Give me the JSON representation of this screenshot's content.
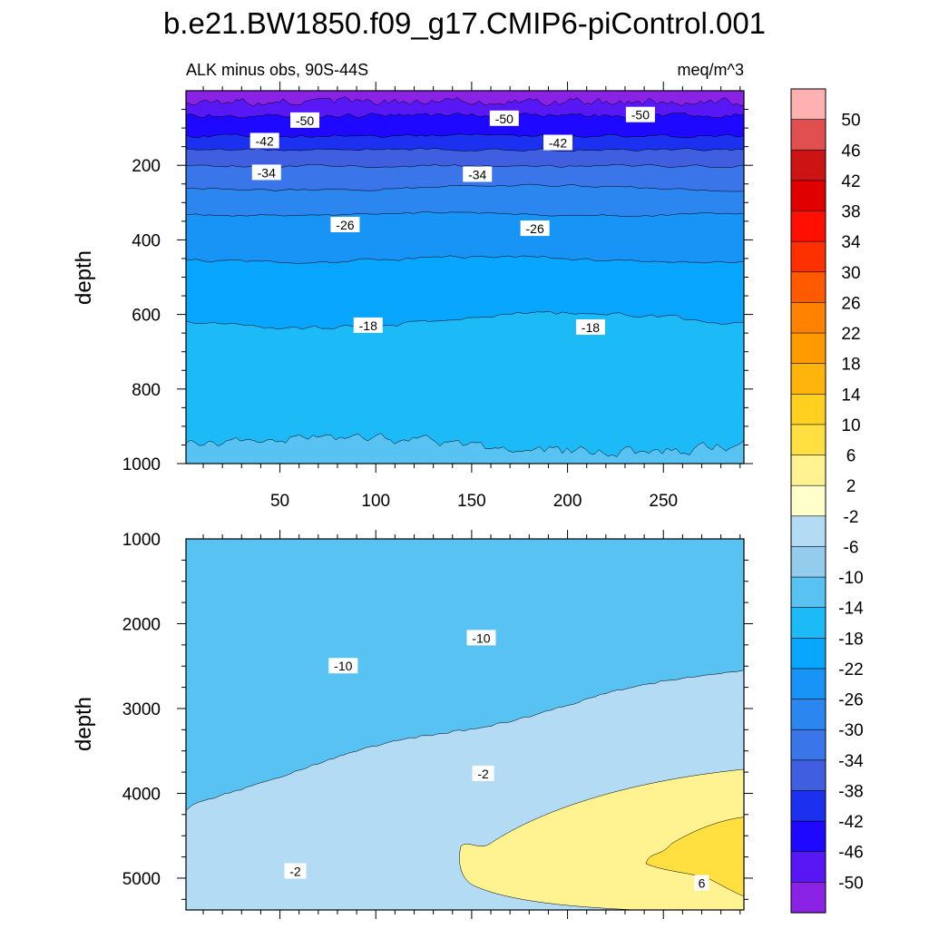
{
  "figure": {
    "title": "b.e21.BW1850.f09_g17.CMIP6-piControl.001",
    "colors": {
      "c_minus54": "#8a22e6",
      "c_minus50": "#5818f5",
      "c_minus46": "#1e08ff",
      "c_minus42": "#1c30f0",
      "c_minus38": "#3f5fe0",
      "c_minus34": "#3a76ea",
      "c_minus30": "#2c86f0",
      "c_minus26": "#1894f7",
      "c_minus22": "#08a6ff",
      "c_minus18": "#1cbaf7",
      "c_minus14": "#58c2f3",
      "c_minus10": "#93ccec",
      "c_minus6": "#b3dcf4",
      "c_minus2": "#ffffcc",
      "c_2": "#fff291",
      "c_6": "#ffe040",
      "c_10": "#ffd020",
      "c_14": "#ffb40b",
      "c_18": "#ff9a00",
      "c_22": "#ff8300",
      "c_26": "#ff5a00",
      "c_30": "#ff3000",
      "c_34": "#ff1000",
      "c_38": "#e00000",
      "c_42": "#cc1414",
      "c_46": "#e05050",
      "c_50": "#ffb0b0"
    }
  },
  "chart_data": [
    {
      "type": "contour",
      "panel": "upper",
      "left_label": "ALK minus obs, 90S-44S",
      "right_label": "meq/m^3",
      "ylabel": "depth",
      "xlabel": "",
      "xlim": [
        1,
        292
      ],
      "ylim": [
        1000,
        0
      ],
      "y_inverted": true,
      "xticks": [
        50,
        100,
        150,
        200,
        250
      ],
      "yticks": [
        200,
        400,
        600,
        800,
        1000
      ],
      "contour_levels": [
        -50,
        -46,
        -42,
        -38,
        -34,
        -30,
        -26,
        -22,
        -18,
        -14
      ],
      "contour_labels": [
        {
          "text": "-50",
          "x": 63,
          "depth": 80
        },
        {
          "text": "-50",
          "x": 167,
          "depth": 75
        },
        {
          "text": "-50",
          "x": 238,
          "depth": 65
        },
        {
          "text": "-42",
          "x": 42,
          "depth": 135
        },
        {
          "text": "-42",
          "x": 195,
          "depth": 140
        },
        {
          "text": "-34",
          "x": 43,
          "depth": 220
        },
        {
          "text": "-34",
          "x": 153,
          "depth": 225
        },
        {
          "text": "-26",
          "x": 84,
          "depth": 360
        },
        {
          "text": "-26",
          "x": 183,
          "depth": 370
        },
        {
          "text": "-18",
          "x": 96,
          "depth": 630
        },
        {
          "text": "-18",
          "x": 212,
          "depth": 635
        }
      ]
    },
    {
      "type": "contour",
      "panel": "lower",
      "ylabel": "depth",
      "xlabel": "",
      "xlim": [
        1,
        292
      ],
      "ylim": [
        5375,
        1000
      ],
      "y_inverted": true,
      "yticks": [
        1000,
        2000,
        3000,
        4000,
        5000
      ],
      "contour_levels": [
        -10,
        -6,
        -2,
        2,
        6
      ],
      "contour_labels": [
        {
          "text": "-10",
          "x": 83,
          "depth": 2500
        },
        {
          "text": "-10",
          "x": 155,
          "depth": 2170
        },
        {
          "text": "-2",
          "x": 156,
          "depth": 3770
        },
        {
          "text": "-2",
          "x": 58,
          "depth": 4920
        },
        {
          "text": "6",
          "x": 270,
          "depth": 5060
        }
      ]
    }
  ],
  "colorbar": {
    "labels": [
      "50",
      "46",
      "42",
      "38",
      "34",
      "30",
      "26",
      "22",
      "18",
      "14",
      "10",
      "6",
      "2",
      "-2",
      "-6",
      "-10",
      "-14",
      "-18",
      "-22",
      "-26",
      "-30",
      "-34",
      "-38",
      "-42",
      "-46",
      "-50"
    ],
    "colors": [
      "#ffb0b0",
      "#e05050",
      "#cc1414",
      "#e00000",
      "#ff1000",
      "#ff3000",
      "#ff5a00",
      "#ff8300",
      "#ff9a00",
      "#ffb40b",
      "#ffd020",
      "#ffe040",
      "#fff291",
      "#ffffcc",
      "#b3dcf4",
      "#93ccec",
      "#58c2f3",
      "#1cbaf7",
      "#08a6ff",
      "#1894f7",
      "#2c86f0",
      "#3a76ea",
      "#3f5fe0",
      "#1c30f0",
      "#1e08ff",
      "#5818f5",
      "#8a22e6"
    ]
  }
}
